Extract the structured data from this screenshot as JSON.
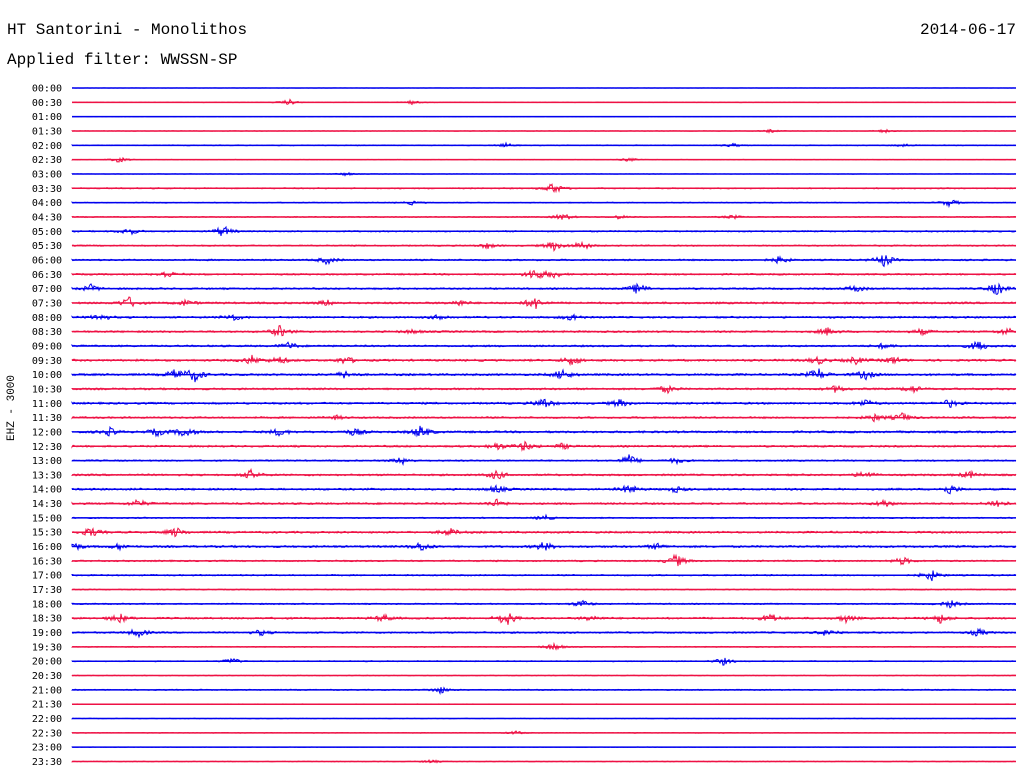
{
  "header": {
    "station": "HT Santorini - Monolithos",
    "date": "2014-06-17",
    "filter": "Applied filter: WWSSN-SP"
  },
  "chart_data": {
    "type": "line",
    "title": "HT Santorini - Monolithos",
    "subtitle": "Applied filter: WWSSN-SP",
    "ylabel": "EHZ - 3000",
    "xlabel": "",
    "grid": false,
    "legend": "none",
    "colors": {
      "even_row": "#0000ee",
      "odd_row": "#ee1144"
    },
    "rows": [
      {
        "time": "00:00",
        "noise": 0.3,
        "events": []
      },
      {
        "time": "00:30",
        "noise": 0.5,
        "events": [
          [
            0.23,
            3
          ],
          [
            0.36,
            2
          ]
        ]
      },
      {
        "time": "01:00",
        "noise": 0.3,
        "events": []
      },
      {
        "time": "01:30",
        "noise": 0.5,
        "events": [
          [
            0.74,
            2
          ],
          [
            0.86,
            2
          ]
        ]
      },
      {
        "time": "02:00",
        "noise": 0.8,
        "events": [
          [
            0.46,
            2
          ],
          [
            0.7,
            2
          ],
          [
            0.88,
            2
          ]
        ]
      },
      {
        "time": "02:30",
        "noise": 0.5,
        "events": [
          [
            0.05,
            3
          ],
          [
            0.59,
            2
          ]
        ]
      },
      {
        "time": "03:00",
        "noise": 0.4,
        "events": [
          [
            0.29,
            2
          ]
        ]
      },
      {
        "time": "03:30",
        "noise": 1.2,
        "events": [
          [
            0.51,
            6
          ]
        ]
      },
      {
        "time": "04:00",
        "noise": 0.9,
        "events": [
          [
            0.93,
            4
          ],
          [
            0.36,
            2
          ]
        ]
      },
      {
        "time": "04:30",
        "noise": 1.0,
        "events": [
          [
            0.52,
            4
          ],
          [
            0.58,
            2
          ],
          [
            0.7,
            2
          ]
        ]
      },
      {
        "time": "05:00",
        "noise": 1.4,
        "events": [
          [
            0.06,
            4
          ],
          [
            0.16,
            6
          ]
        ]
      },
      {
        "time": "05:30",
        "noise": 1.3,
        "events": [
          [
            0.44,
            3
          ],
          [
            0.51,
            5
          ],
          [
            0.54,
            5
          ]
        ]
      },
      {
        "time": "06:00",
        "noise": 1.5,
        "events": [
          [
            0.27,
            4
          ],
          [
            0.75,
            4
          ],
          [
            0.86,
            7
          ]
        ]
      },
      {
        "time": "06:30",
        "noise": 1.6,
        "events": [
          [
            0.1,
            4
          ],
          [
            0.49,
            7
          ],
          [
            0.51,
            4
          ]
        ]
      },
      {
        "time": "07:00",
        "noise": 1.7,
        "events": [
          [
            0.02,
            4
          ],
          [
            0.6,
            6
          ],
          [
            0.83,
            4
          ],
          [
            0.98,
            7
          ]
        ]
      },
      {
        "time": "07:30",
        "noise": 1.9,
        "events": [
          [
            0.06,
            6
          ],
          [
            0.12,
            3
          ],
          [
            0.27,
            3
          ],
          [
            0.41,
            3
          ],
          [
            0.49,
            7
          ]
        ]
      },
      {
        "time": "08:00",
        "noise": 1.8,
        "events": [
          [
            0.03,
            4
          ],
          [
            0.17,
            4
          ],
          [
            0.39,
            3
          ],
          [
            0.53,
            4
          ]
        ]
      },
      {
        "time": "08:30",
        "noise": 1.8,
        "events": [
          [
            0.22,
            6
          ],
          [
            0.36,
            2
          ],
          [
            0.8,
            4
          ],
          [
            0.9,
            3
          ],
          [
            0.99,
            4
          ]
        ]
      },
      {
        "time": "09:00",
        "noise": 1.7,
        "events": [
          [
            0.23,
            4
          ],
          [
            0.86,
            3
          ],
          [
            0.96,
            6
          ]
        ]
      },
      {
        "time": "09:30",
        "noise": 2.0,
        "events": [
          [
            0.19,
            5
          ],
          [
            0.22,
            4
          ],
          [
            0.29,
            4
          ],
          [
            0.53,
            5
          ],
          [
            0.79,
            4
          ],
          [
            0.83,
            4
          ],
          [
            0.87,
            4
          ]
        ]
      },
      {
        "time": "10:00",
        "noise": 2.0,
        "events": [
          [
            0.11,
            6
          ],
          [
            0.13,
            7
          ],
          [
            0.29,
            4
          ],
          [
            0.52,
            6
          ],
          [
            0.79,
            7
          ],
          [
            0.84,
            5
          ]
        ]
      },
      {
        "time": "10:30",
        "noise": 1.8,
        "events": [
          [
            0.63,
            4
          ],
          [
            0.81,
            4
          ],
          [
            0.89,
            4
          ]
        ]
      },
      {
        "time": "11:00",
        "noise": 1.9,
        "events": [
          [
            0.5,
            6
          ],
          [
            0.58,
            4
          ],
          [
            0.84,
            4
          ],
          [
            0.93,
            4
          ]
        ]
      },
      {
        "time": "11:30",
        "noise": 1.7,
        "events": [
          [
            0.28,
            2
          ],
          [
            0.85,
            4
          ],
          [
            0.88,
            5
          ]
        ]
      },
      {
        "time": "12:00",
        "noise": 2.0,
        "events": [
          [
            0.04,
            4
          ],
          [
            0.09,
            4
          ],
          [
            0.12,
            6
          ],
          [
            0.22,
            4
          ],
          [
            0.3,
            4
          ],
          [
            0.37,
            7
          ]
        ]
      },
      {
        "time": "12:30",
        "noise": 1.8,
        "events": [
          [
            0.45,
            4
          ],
          [
            0.48,
            5
          ],
          [
            0.52,
            3
          ]
        ]
      },
      {
        "time": "13:00",
        "noise": 1.5,
        "events": [
          [
            0.35,
            4
          ],
          [
            0.59,
            6
          ],
          [
            0.64,
            3
          ]
        ]
      },
      {
        "time": "13:30",
        "noise": 1.8,
        "events": [
          [
            0.19,
            5
          ],
          [
            0.45,
            5
          ],
          [
            0.84,
            4
          ],
          [
            0.95,
            4
          ]
        ]
      },
      {
        "time": "14:00",
        "noise": 1.9,
        "events": [
          [
            0.45,
            4
          ],
          [
            0.59,
            5
          ],
          [
            0.64,
            3
          ],
          [
            0.93,
            5
          ]
        ]
      },
      {
        "time": "14:30",
        "noise": 1.8,
        "events": [
          [
            0.07,
            4
          ],
          [
            0.45,
            4
          ],
          [
            0.86,
            4
          ],
          [
            0.98,
            5
          ]
        ]
      },
      {
        "time": "15:00",
        "noise": 1.2,
        "events": [
          [
            0.5,
            3
          ]
        ]
      },
      {
        "time": "15:30",
        "noise": 1.9,
        "events": [
          [
            0.02,
            5
          ],
          [
            0.11,
            5
          ],
          [
            0.4,
            4
          ]
        ]
      },
      {
        "time": "16:00",
        "noise": 2.0,
        "events": [
          [
            0.0,
            6
          ],
          [
            0.05,
            3
          ],
          [
            0.37,
            5
          ],
          [
            0.5,
            5
          ],
          [
            0.62,
            3
          ]
        ]
      },
      {
        "time": "16:30",
        "noise": 1.5,
        "events": [
          [
            0.64,
            7
          ],
          [
            0.88,
            4
          ]
        ]
      },
      {
        "time": "17:00",
        "noise": 1.4,
        "events": [
          [
            0.91,
            6
          ]
        ]
      },
      {
        "time": "17:30",
        "noise": 1.0,
        "events": []
      },
      {
        "time": "18:00",
        "noise": 1.3,
        "events": [
          [
            0.54,
            4
          ],
          [
            0.93,
            4
          ]
        ]
      },
      {
        "time": "18:30",
        "noise": 1.8,
        "events": [
          [
            0.05,
            5
          ],
          [
            0.33,
            4
          ],
          [
            0.46,
            9
          ],
          [
            0.55,
            3
          ],
          [
            0.74,
            5
          ],
          [
            0.82,
            4
          ],
          [
            0.92,
            5
          ]
        ]
      },
      {
        "time": "19:00",
        "noise": 1.6,
        "events": [
          [
            0.07,
            5
          ],
          [
            0.2,
            3
          ],
          [
            0.8,
            4
          ],
          [
            0.96,
            4
          ]
        ]
      },
      {
        "time": "19:30",
        "noise": 0.9,
        "events": [
          [
            0.51,
            4
          ]
        ]
      },
      {
        "time": "20:00",
        "noise": 1.0,
        "events": [
          [
            0.17,
            3
          ],
          [
            0.69,
            4
          ]
        ]
      },
      {
        "time": "20:30",
        "noise": 0.6,
        "events": []
      },
      {
        "time": "21:00",
        "noise": 1.1,
        "events": [
          [
            0.39,
            4
          ]
        ]
      },
      {
        "time": "21:30",
        "noise": 0.6,
        "events": []
      },
      {
        "time": "22:00",
        "noise": 0.4,
        "events": []
      },
      {
        "time": "22:30",
        "noise": 0.7,
        "events": [
          [
            0.47,
            2
          ]
        ]
      },
      {
        "time": "23:00",
        "noise": 0.5,
        "events": []
      },
      {
        "time": "23:30",
        "noise": 0.6,
        "events": [
          [
            0.38,
            2
          ]
        ]
      }
    ]
  }
}
